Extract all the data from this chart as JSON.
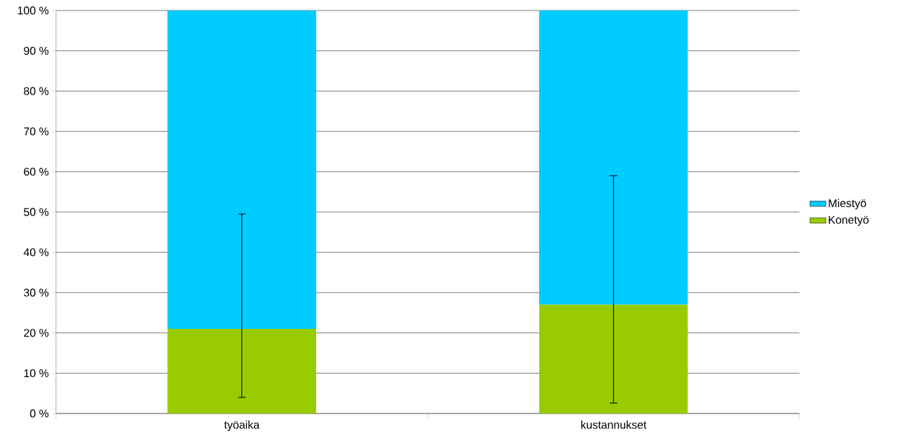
{
  "chart_data": {
    "type": "bar",
    "stacked": true,
    "categories": [
      "työaika",
      "kustannukset"
    ],
    "series": [
      {
        "name": "Konetyö",
        "color": "#99cc00",
        "values": [
          21,
          27
        ],
        "errors": [
          [
            4,
            49.5
          ],
          [
            2.6,
            59
          ]
        ]
      },
      {
        "name": "Miestyö",
        "color": "#00ccff",
        "values": [
          79,
          73
        ]
      }
    ],
    "ylim": [
      0,
      100
    ],
    "yticks": [
      {
        "value": 0,
        "label": "0 %"
      },
      {
        "value": 10,
        "label": "10 %"
      },
      {
        "value": 20,
        "label": "20 %"
      },
      {
        "value": 30,
        "label": "30 %"
      },
      {
        "value": 40,
        "label": "40 %"
      },
      {
        "value": 50,
        "label": "50 %"
      },
      {
        "value": 60,
        "label": "60 %"
      },
      {
        "value": 70,
        "label": "70 %"
      },
      {
        "value": 80,
        "label": "80 %"
      },
      {
        "value": 90,
        "label": "90 %"
      },
      {
        "value": 100,
        "label": "100 %"
      }
    ],
    "grid": "y",
    "legend": "right"
  }
}
